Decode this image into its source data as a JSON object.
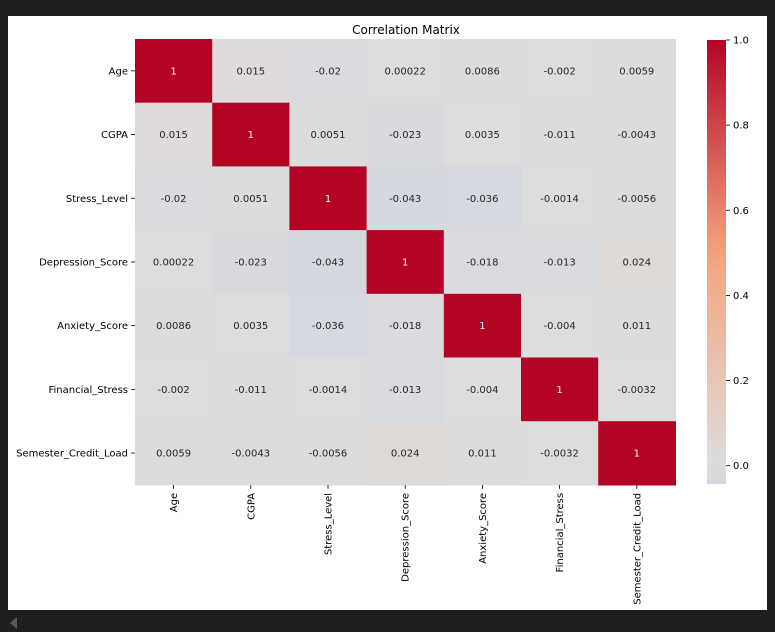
{
  "chart_data": {
    "type": "heatmap",
    "title": "Correlation Matrix",
    "variables": [
      "Age",
      "CGPA",
      "Stress_Level",
      "Depression_Score",
      "Anxiety_Score",
      "Financial_Stress",
      "Semester_Credit_Load"
    ],
    "values": [
      [
        1,
        0.015,
        -0.02,
        0.00022,
        0.0086,
        -0.002,
        0.0059
      ],
      [
        0.015,
        1,
        0.0051,
        -0.023,
        0.0035,
        -0.011,
        -0.0043
      ],
      [
        -0.02,
        0.0051,
        1,
        -0.043,
        -0.036,
        -0.0014,
        -0.0056
      ],
      [
        0.00022,
        -0.023,
        -0.043,
        1,
        -0.018,
        -0.013,
        0.024
      ],
      [
        0.0086,
        0.0035,
        -0.036,
        -0.018,
        1,
        -0.004,
        0.011
      ],
      [
        -0.002,
        -0.011,
        -0.0014,
        -0.013,
        -0.004,
        1,
        -0.0032
      ],
      [
        0.0059,
        -0.0043,
        -0.0056,
        0.024,
        0.011,
        -0.0032,
        1
      ]
    ],
    "annotations": [
      [
        "1",
        "0.015",
        "-0.02",
        "0.00022",
        "0.0086",
        "-0.002",
        "0.0059"
      ],
      [
        "0.015",
        "1",
        "0.0051",
        "-0.023",
        "0.0035",
        "-0.011",
        "-0.0043"
      ],
      [
        "-0.02",
        "0.0051",
        "1",
        "-0.043",
        "-0.036",
        "-0.0014",
        "-0.0056"
      ],
      [
        "0.00022",
        "-0.023",
        "-0.043",
        "1",
        "-0.018",
        "-0.013",
        "0.024"
      ],
      [
        "0.0086",
        "0.0035",
        "-0.036",
        "-0.018",
        "1",
        "-0.004",
        "0.011"
      ],
      [
        "-0.002",
        "-0.011",
        "-0.0014",
        "-0.013",
        "-0.004",
        "1",
        "-0.0032"
      ],
      [
        "0.0059",
        "-0.0043",
        "-0.0056",
        "0.024",
        "0.011",
        "-0.0032",
        "1"
      ]
    ],
    "colormap": "coolwarm",
    "colorbar": {
      "range": [
        -0.043,
        1.0
      ],
      "ticks": [
        0.0,
        0.2,
        0.4,
        0.6,
        0.8,
        1.0
      ],
      "tick_labels": [
        "0.0",
        "0.2",
        "0.4",
        "0.6",
        "0.8",
        "1.0"
      ]
    }
  }
}
